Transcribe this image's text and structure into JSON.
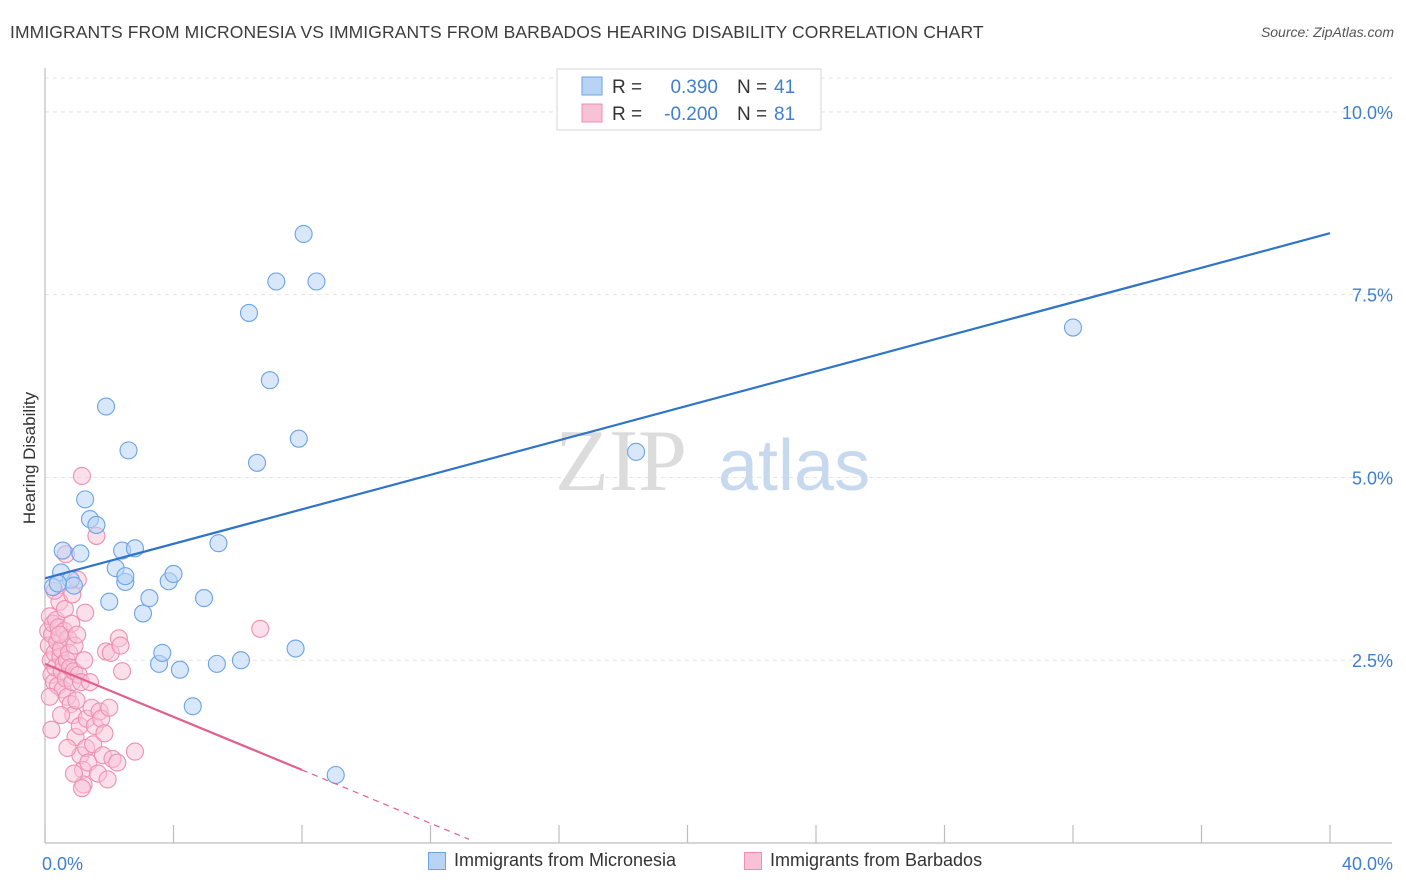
{
  "header": {
    "title": "IMMIGRANTS FROM MICRONESIA VS IMMIGRANTS FROM BARBADOS HEARING DISABILITY CORRELATION CHART",
    "source": "Source: ZipAtlas.com"
  },
  "watermark": {
    "part1": "ZIP",
    "part2": "atlas"
  },
  "colors": {
    "blue": "#6aa3e8",
    "blue_fill": "#b8d3f4",
    "blue_line": "#2f74c9",
    "pink": "#ee8fb0",
    "pink_fill": "#f7c2d5",
    "pink_line": "#e0608e",
    "tick": "#3f7fcf"
  },
  "stats_legend": [
    {
      "r_label": "R =",
      "r_value": "0.390",
      "n_label": "N =",
      "n_value": "41"
    },
    {
      "r_label": "R =",
      "r_value": "-0.200",
      "n_label": "N =",
      "n_value": "81"
    }
  ],
  "bottom_legend": [
    {
      "label": "Immigrants from Micronesia"
    },
    {
      "label": "Immigrants from Barbados"
    }
  ],
  "chart_data": {
    "type": "scatter",
    "xlabel": "",
    "ylabel": "Hearing Disability",
    "xlim": [
      0,
      40
    ],
    "ylim": [
      0,
      10.6
    ],
    "x_tick_labels": [
      "0.0%",
      "40.0%"
    ],
    "y_ticks": [
      2.5,
      5.0,
      7.5,
      10.0
    ],
    "y_tick_labels": [
      "2.5%",
      "5.0%",
      "7.5%",
      "10.0%"
    ],
    "grid": "horizontal dashed",
    "legend": "top-center",
    "series": [
      {
        "name": "Immigrants from Micronesia",
        "trend": {
          "x": [
            0,
            40
          ],
          "y": [
            3.62,
            8.34
          ],
          "dashed_from": null
        },
        "points": [
          [
            0.25,
            3.5
          ],
          [
            0.5,
            3.7
          ],
          [
            0.55,
            4.0
          ],
          [
            0.8,
            3.6
          ],
          [
            0.9,
            3.52
          ],
          [
            1.1,
            3.96
          ],
          [
            1.25,
            4.7
          ],
          [
            1.4,
            4.43
          ],
          [
            1.6,
            4.35
          ],
          [
            1.9,
            5.97
          ],
          [
            2.0,
            3.3
          ],
          [
            2.2,
            3.76
          ],
          [
            2.4,
            4.0
          ],
          [
            2.5,
            3.57
          ],
          [
            2.5,
            3.65
          ],
          [
            2.6,
            5.37
          ],
          [
            2.8,
            4.03
          ],
          [
            3.05,
            3.14
          ],
          [
            3.25,
            3.35
          ],
          [
            3.55,
            2.45
          ],
          [
            3.65,
            2.6
          ],
          [
            3.85,
            3.58
          ],
          [
            4.0,
            3.68
          ],
          [
            4.2,
            2.37
          ],
          [
            4.6,
            1.87
          ],
          [
            4.95,
            3.35
          ],
          [
            5.35,
            2.45
          ],
          [
            5.4,
            4.1
          ],
          [
            6.1,
            2.5
          ],
          [
            6.35,
            7.25
          ],
          [
            6.6,
            5.2
          ],
          [
            7.0,
            6.33
          ],
          [
            7.2,
            7.68
          ],
          [
            7.8,
            2.66
          ],
          [
            7.9,
            5.53
          ],
          [
            8.05,
            8.33
          ],
          [
            8.45,
            7.68
          ],
          [
            9.05,
            0.93
          ],
          [
            18.4,
            5.35
          ],
          [
            32.0,
            7.05
          ],
          [
            0.4,
            3.55
          ]
        ]
      },
      {
        "name": "Immigrants from Barbados",
        "trend": {
          "x": [
            0,
            8.0
          ],
          "y": [
            2.45,
            1.0
          ],
          "dashed_to": [
            13.2,
            0.05
          ]
        },
        "points": [
          [
            0.1,
            2.9
          ],
          [
            0.12,
            2.7
          ],
          [
            0.15,
            3.1
          ],
          [
            0.18,
            2.5
          ],
          [
            0.2,
            2.3
          ],
          [
            0.22,
            2.85
          ],
          [
            0.25,
            3.0
          ],
          [
            0.28,
            2.2
          ],
          [
            0.3,
            2.6
          ],
          [
            0.32,
            2.4
          ],
          [
            0.35,
            3.05
          ],
          [
            0.38,
            2.75
          ],
          [
            0.4,
            2.15
          ],
          [
            0.42,
            2.95
          ],
          [
            0.45,
            3.3
          ],
          [
            0.48,
            2.55
          ],
          [
            0.5,
            2.65
          ],
          [
            0.52,
            2.35
          ],
          [
            0.55,
            2.1
          ],
          [
            0.58,
            2.45
          ],
          [
            0.6,
            2.9
          ],
          [
            0.62,
            3.2
          ],
          [
            0.65,
            2.25
          ],
          [
            0.68,
            2.5
          ],
          [
            0.7,
            2.0
          ],
          [
            0.72,
            2.8
          ],
          [
            0.75,
            2.6
          ],
          [
            0.78,
            2.4
          ],
          [
            0.8,
            1.9
          ],
          [
            0.82,
            3.0
          ],
          [
            0.85,
            2.2
          ],
          [
            0.88,
            1.75
          ],
          [
            0.9,
            2.35
          ],
          [
            0.92,
            2.7
          ],
          [
            0.95,
            1.45
          ],
          [
            0.98,
            1.95
          ],
          [
            1.0,
            2.85
          ],
          [
            1.02,
            3.6
          ],
          [
            1.05,
            2.3
          ],
          [
            1.08,
            1.6
          ],
          [
            1.1,
            1.2
          ],
          [
            1.12,
            2.2
          ],
          [
            1.15,
            5.02
          ],
          [
            1.18,
            1.0
          ],
          [
            1.2,
            0.8
          ],
          [
            1.22,
            2.5
          ],
          [
            1.25,
            3.15
          ],
          [
            1.28,
            1.3
          ],
          [
            1.3,
            1.7
          ],
          [
            1.35,
            1.1
          ],
          [
            1.4,
            2.2
          ],
          [
            1.45,
            1.85
          ],
          [
            1.5,
            1.35
          ],
          [
            1.55,
            1.6
          ],
          [
            1.6,
            4.2
          ],
          [
            1.65,
            0.95
          ],
          [
            1.7,
            1.8
          ],
          [
            1.75,
            1.7
          ],
          [
            1.8,
            1.2
          ],
          [
            1.85,
            1.5
          ],
          [
            1.9,
            2.62
          ],
          [
            1.95,
            0.87
          ],
          [
            2.0,
            1.85
          ],
          [
            2.05,
            2.6
          ],
          [
            2.1,
            1.15
          ],
          [
            2.25,
            1.1
          ],
          [
            2.3,
            2.8
          ],
          [
            2.35,
            2.7
          ],
          [
            2.4,
            2.35
          ],
          [
            2.8,
            1.25
          ],
          [
            6.7,
            2.93
          ],
          [
            0.15,
            2.0
          ],
          [
            0.3,
            3.45
          ],
          [
            0.5,
            1.75
          ],
          [
            0.7,
            1.3
          ],
          [
            0.9,
            0.95
          ],
          [
            1.15,
            0.75
          ],
          [
            0.2,
            1.55
          ],
          [
            0.45,
            2.85
          ],
          [
            0.65,
            3.95
          ],
          [
            0.85,
            3.4
          ]
        ]
      }
    ]
  }
}
